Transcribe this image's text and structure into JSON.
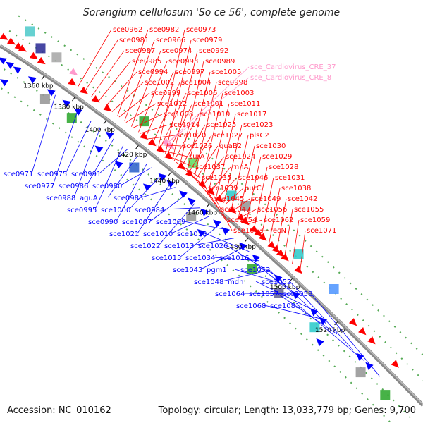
{
  "title": "Sorangium cellulosum 'So ce 56', complete genome",
  "accession": "Accession: NC_010162",
  "topology": "Topology: circular; Length: 13,033,779 bp; Genes: 9,700",
  "colors": {
    "forward": "#ff0000",
    "reverse": "#0000ff",
    "rna": "#ff99cc",
    "ruler": "#888888"
  },
  "kbp_ticks": [
    "1360 kbp",
    "1380 kbp",
    "1400 kbp",
    "1420 kbp",
    "1440 kbp",
    "1460 kbp",
    "1480 kbp",
    "1500 kbp",
    "1520 kbp"
  ],
  "red_labels": [
    "sce0962",
    "sce0982",
    "sce0973",
    "sce0981",
    "sce0966",
    "sce0979",
    "sce0987",
    "sce0974",
    "sce0992",
    "sce0985",
    "sce0993",
    "sce0989",
    "sce0994",
    "sce0997",
    "sce1005",
    "sce1002",
    "sce1004",
    "sce0998",
    "sce0999",
    "sce1006",
    "sce1003",
    "sce1012",
    "sce1001",
    "sce1011",
    "sce1008",
    "sce1019",
    "sce1017",
    "sce1014",
    "sce1025",
    "sce1023",
    "sce1020",
    "sce1027",
    "plsC2",
    "sce1036",
    "guaB2",
    "sce1030",
    "surA",
    "sce1024",
    "sce1029",
    "sce1037",
    "rnhA",
    "sce1028",
    "sce1035",
    "sce1046",
    "sce1031",
    "sce1039",
    "purC",
    "sce1038",
    "sce1045",
    "sce1049",
    "sce1042",
    "sce1047",
    "sce1056",
    "sce1055",
    "sce1054",
    "sce1062",
    "sce1059",
    "sce1063",
    "recN",
    "sce1071"
  ],
  "pink_labels": [
    "sce_Cardiovirus_CRE_37",
    "sce_Cardiovirus_CRE_8"
  ],
  "blue_labels": [
    "sce0971",
    "sce0975",
    "sce0991",
    "sce0977",
    "sce0986",
    "sce0980",
    "sce0988",
    "aguA",
    "sce0983",
    "sce0995",
    "sce1000",
    "sce0984",
    "sce0990",
    "sce1007",
    "sce1009",
    "sce1021",
    "sce1010",
    "sce1018",
    "sce1022",
    "sce1013",
    "sce1026",
    "sce1015",
    "sce1034",
    "sce1016",
    "sce1043",
    "pgm1",
    "sce1053",
    "sce1048",
    "mdh",
    "sce1052",
    "sce1064",
    "sce1057",
    "sce1058",
    "sce1068",
    "sce1081"
  ]
}
